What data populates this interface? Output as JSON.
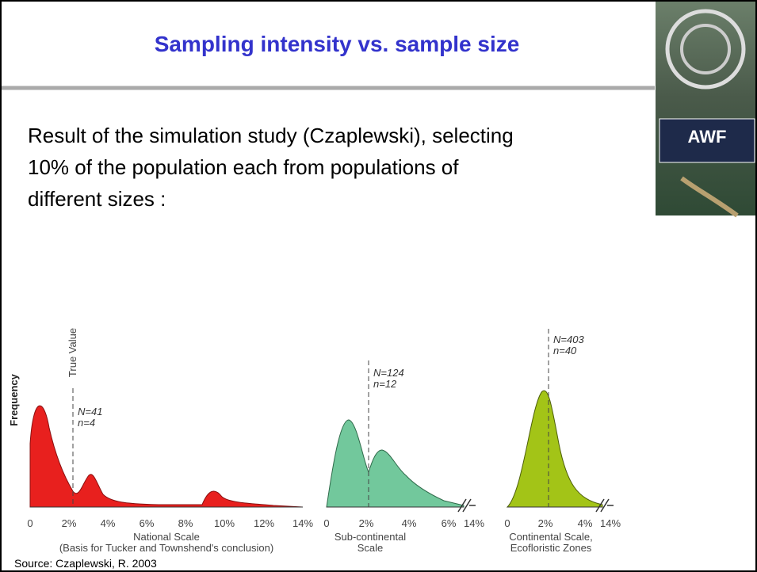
{
  "header": {
    "title": "Sampling intensity vs. sample size"
  },
  "body": {
    "lines": [
      "Result of the simulation study (Czaplewski), selecting",
      "10% of the population each from populations of",
      "different sizes :"
    ]
  },
  "logo": {
    "label": "AWF"
  },
  "figure": {
    "y_label": "Frequency",
    "true_value": "True Value",
    "panels": [
      {
        "N": "N=41",
        "n": "n=4",
        "ticks": [
          "0",
          "2%",
          "4%",
          "6%",
          "8%",
          "10%",
          "12%",
          "14%"
        ],
        "caption": [
          "National Scale",
          "(Basis for Tucker and Townshend's conclusion)"
        ]
      },
      {
        "N": "N=124",
        "n": "n=12",
        "ticks": [
          "0",
          "2%",
          "4%",
          "6%",
          "14%"
        ],
        "caption": [
          "Sub-continental",
          "Scale"
        ]
      },
      {
        "N": "N=403",
        "n": "n=40",
        "ticks": [
          "0",
          "2%",
          "4%",
          "14%"
        ],
        "caption": [
          "Continental Scale,",
          "Ecofloristic Zones"
        ]
      }
    ],
    "source": "Source: Czaplewski, R. 2003"
  }
}
